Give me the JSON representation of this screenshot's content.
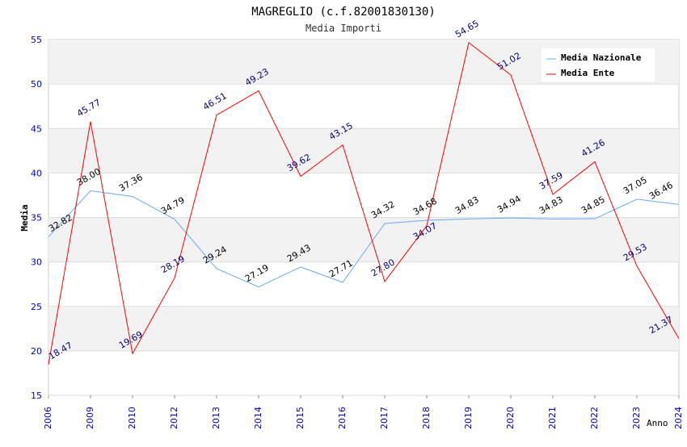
{
  "chart_data": {
    "type": "line",
    "title": "MAGREGLIO (c.f.82001830130)",
    "subtitle": "Media Importi",
    "xlabel": "Anno",
    "ylabel": "Media",
    "ylim": [
      15,
      55
    ],
    "yticks": [
      15,
      20,
      25,
      30,
      35,
      40,
      45,
      50,
      55
    ],
    "categories": [
      "2006",
      "2009",
      "2010",
      "2012",
      "2013",
      "2014",
      "2015",
      "2016",
      "2017",
      "2018",
      "2019",
      "2020",
      "2021",
      "2022",
      "2023",
      "2024"
    ],
    "legend_position": "top-right",
    "series": [
      {
        "name": "Media Nazionale",
        "color": "#6aaaf0",
        "label_color": "#000000",
        "values": [
          32.82,
          38.0,
          37.36,
          34.79,
          29.24,
          27.19,
          29.43,
          27.71,
          34.32,
          34.68,
          34.83,
          34.94,
          34.83,
          34.85,
          37.05,
          36.46
        ]
      },
      {
        "name": "Media Ente",
        "color": "#ff0000",
        "label_color": "#000080",
        "values": [
          18.47,
          45.77,
          19.69,
          28.19,
          46.51,
          49.23,
          39.62,
          43.15,
          27.8,
          34.07,
          54.65,
          51.02,
          37.59,
          41.26,
          29.53,
          21.37
        ]
      }
    ]
  }
}
